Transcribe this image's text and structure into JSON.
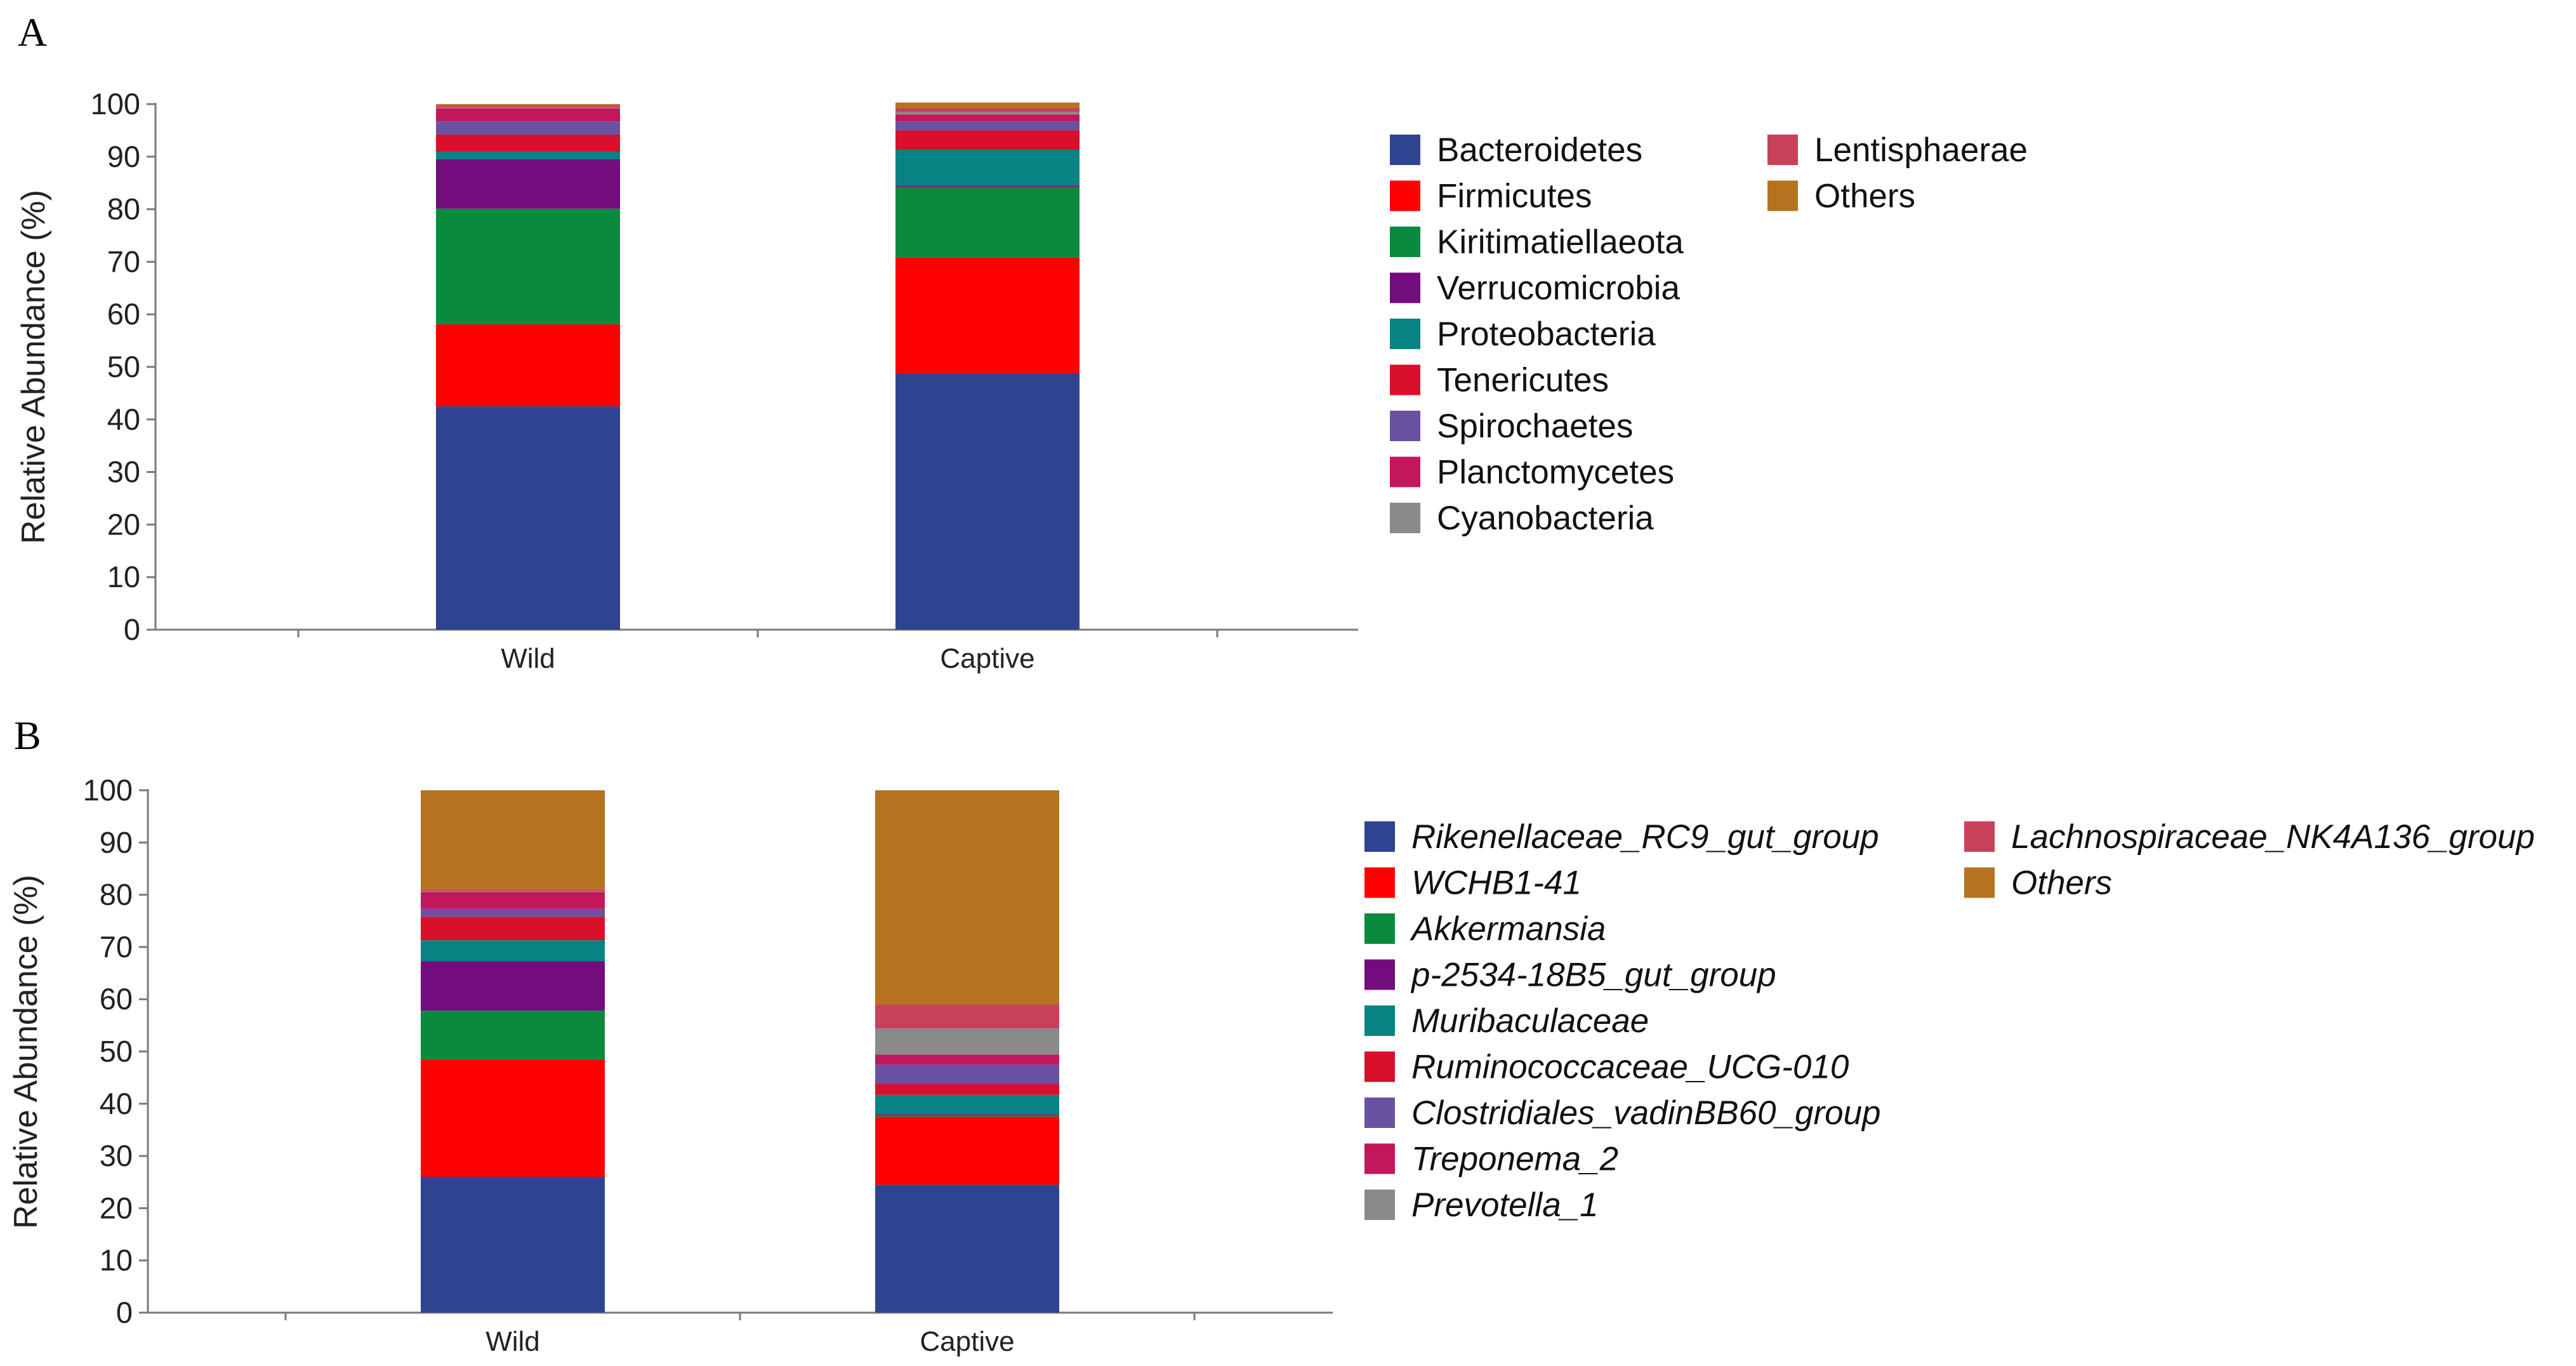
{
  "chart_data": [
    {
      "type": "bar",
      "stacked": true,
      "panel_label": "A",
      "ylabel": "Relative Abundance (%)",
      "ylim": [
        0,
        100
      ],
      "yticks": [
        0,
        10,
        20,
        30,
        40,
        50,
        60,
        70,
        80,
        90,
        100
      ],
      "categories": [
        "Wild",
        "Captive"
      ],
      "legend_italic": false,
      "series": [
        {
          "name": "Bacteroidetes",
          "color": "#2e4491",
          "values": [
            42.5,
            48.8
          ]
        },
        {
          "name": "Firmicutes",
          "color": "#ff0000",
          "values": [
            15.6,
            22.0
          ]
        },
        {
          "name": "Kiritimatiellaeota",
          "color": "#098a3c",
          "values": [
            22.0,
            13.4
          ]
        },
        {
          "name": "Verrucomicrobia",
          "color": "#730c7d",
          "values": [
            9.4,
            0.3
          ]
        },
        {
          "name": "Proteobacteria",
          "color": "#078383",
          "values": [
            1.5,
            6.8
          ]
        },
        {
          "name": "Tenericutes",
          "color": "#d8102c",
          "values": [
            3.2,
            3.7
          ]
        },
        {
          "name": "Spirochaetes",
          "color": "#6a52a3",
          "values": [
            2.5,
            1.7
          ]
        },
        {
          "name": "Planctomycetes",
          "color": "#c2175b",
          "values": [
            2.5,
            1.3
          ]
        },
        {
          "name": "Cyanobacteria",
          "color": "#8a8a8a",
          "values": [
            0.2,
            0.5
          ]
        },
        {
          "name": "Lentisphaerae",
          "color": "#c8405a",
          "values": [
            0.3,
            0.8
          ]
        },
        {
          "name": "Others",
          "color": "#b5731f",
          "values": [
            0.3,
            1.0
          ]
        }
      ]
    },
    {
      "type": "bar",
      "stacked": true,
      "panel_label": "B",
      "ylabel": "Relative Abundance (%)",
      "ylim": [
        0,
        100
      ],
      "yticks": [
        0,
        10,
        20,
        30,
        40,
        50,
        60,
        70,
        80,
        90,
        100
      ],
      "categories": [
        "Wild",
        "Captive"
      ],
      "legend_italic": true,
      "series": [
        {
          "name": "Rikenellaceae_RC9_gut_group",
          "color": "#2e4491",
          "values": [
            26.0,
            24.5
          ]
        },
        {
          "name": "WCHB1-41",
          "color": "#ff0000",
          "values": [
            22.5,
            13.0
          ]
        },
        {
          "name": "Akkermansia",
          "color": "#098a3c",
          "values": [
            9.3,
            0.3
          ]
        },
        {
          "name": "p-2534-18B5_gut_group",
          "color": "#730c7d",
          "values": [
            9.5,
            0.2
          ]
        },
        {
          "name": "Muribaculaceae",
          "color": "#078383",
          "values": [
            4.0,
            3.7
          ]
        },
        {
          "name": "Ruminococcaceae_UCG-010",
          "color": "#d8102c",
          "values": [
            4.5,
            2.1
          ]
        },
        {
          "name": "Clostridiales_vadinBB60_group",
          "color": "#6a52a3",
          "values": [
            1.5,
            3.7
          ]
        },
        {
          "name": "Treponema_2",
          "color": "#c2175b",
          "values": [
            3.2,
            1.9
          ]
        },
        {
          "name": "Prevotella_1",
          "color": "#8a8a8a",
          "values": [
            0.2,
            5.0
          ]
        },
        {
          "name": "Lachnospiraceae_NK4A136_group",
          "color": "#c8405a",
          "values": [
            0.3,
            4.6
          ]
        },
        {
          "name": "Others",
          "color": "#b5731f",
          "values": [
            19.0,
            41.0
          ]
        }
      ]
    }
  ]
}
